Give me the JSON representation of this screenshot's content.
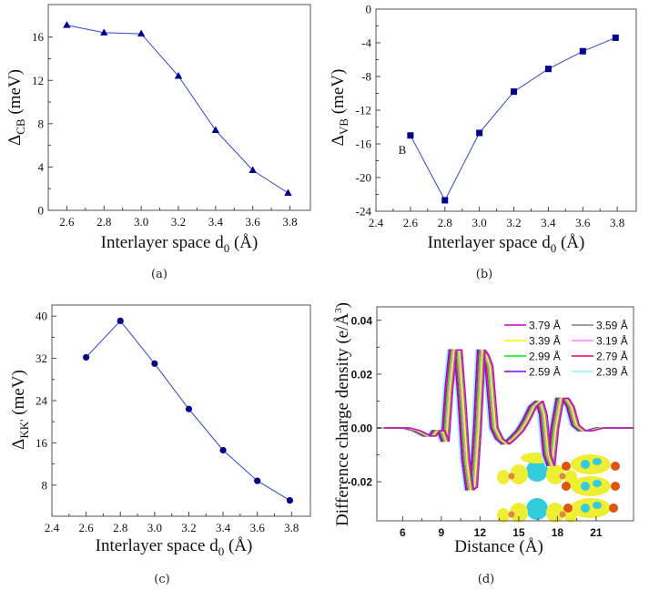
{
  "chart_data": [
    {
      "id": "a",
      "type": "line",
      "caption": "(a)",
      "xlabel": "Interlayer space d",
      "xlabel_sub": "0",
      "xlabel_unit": " (Å)",
      "ylabel_symbol": "Δ",
      "ylabel_sub": "CB",
      "ylabel_unit": " (meV)",
      "xlim": [
        2.5,
        3.91
      ],
      "ylim": [
        0,
        19
      ],
      "xticks": [
        2.6,
        2.8,
        3.0,
        3.2,
        3.4,
        3.6,
        3.8
      ],
      "xtick_labels": [
        "2.6",
        "2.8",
        "3.0",
        "3.2",
        "3.4",
        "3.6",
        "3.8"
      ],
      "yticks": [
        0,
        4,
        8,
        12,
        16
      ],
      "ytick_labels": [
        "0",
        "4",
        "8",
        "12",
        "16"
      ],
      "marker": "triangle",
      "color": "#00008b",
      "line_color": "#3344cc",
      "x": [
        2.6,
        2.8,
        3.0,
        3.2,
        3.4,
        3.6,
        3.79
      ],
      "values": [
        17.1,
        16.4,
        16.3,
        12.4,
        7.4,
        3.7,
        1.6
      ],
      "grid": false
    },
    {
      "id": "b",
      "type": "line",
      "caption": "(b)",
      "annotation": "B",
      "annotation_at": [
        2.53,
        -17.2
      ],
      "xlabel": "Interlayer space d",
      "xlabel_sub": "0",
      "xlabel_unit": " (Å)",
      "ylabel_symbol": "Δ",
      "ylabel_sub": "VB",
      "ylabel_unit": " (meV)",
      "xlim": [
        2.4,
        3.91
      ],
      "ylim": [
        -24,
        0
      ],
      "xticks": [
        2.4,
        2.6,
        2.8,
        3.0,
        3.2,
        3.4,
        3.6,
        3.8
      ],
      "xtick_labels": [
        "2.4",
        "2.6",
        "2.8",
        "3.0",
        "3.2",
        "3.4",
        "3.6",
        "3.8"
      ],
      "yticks": [
        -24,
        -20,
        -16,
        -12,
        -8,
        -4,
        0
      ],
      "ytick_labels": [
        "-24",
        "-20",
        "-16",
        "-12",
        "-8",
        "-4",
        "0"
      ],
      "marker": "square",
      "color": "#00008b",
      "line_color": "#3344cc",
      "x": [
        2.6,
        2.8,
        3.0,
        3.2,
        3.4,
        3.6,
        3.79
      ],
      "values": [
        -15.0,
        -22.7,
        -14.7,
        -9.8,
        -7.1,
        -5.0,
        -3.4
      ],
      "grid": false
    },
    {
      "id": "c",
      "type": "line",
      "caption": "(c)",
      "xlabel": "Interlayer space d",
      "xlabel_sub": "0",
      "xlabel_unit": " (Å)",
      "ylabel_symbol": "Δ",
      "ylabel_sub": "KK'",
      "ylabel_unit": " (meV)",
      "xlim": [
        2.4,
        3.91
      ],
      "ylim": [
        2.1,
        42.1
      ],
      "xticks": [
        2.4,
        2.6,
        2.8,
        3.0,
        3.2,
        3.4,
        3.6,
        3.8
      ],
      "xtick_labels": [
        "2.4",
        "2.6",
        "2.8",
        "3.0",
        "3.2",
        "3.4",
        "3.6",
        "3.8"
      ],
      "yticks": [
        8,
        16,
        24,
        32,
        40
      ],
      "ytick_labels": [
        "8",
        "16",
        "24",
        "32",
        "40"
      ],
      "marker": "circle",
      "color": "#00008b",
      "line_color": "#3344cc",
      "x": [
        2.6,
        2.8,
        3.0,
        3.2,
        3.4,
        3.6,
        3.79
      ],
      "values": [
        32.2,
        39.1,
        31.0,
        22.4,
        14.6,
        8.8,
        5.1
      ],
      "grid": false
    },
    {
      "id": "d",
      "type": "line",
      "caption": "(d)",
      "xlabel": "Distance (Å)",
      "ylabel": "Difference charge density (e/Å",
      "ylabel_sup": "3",
      "ylabel_close": ")",
      "xlim": [
        4.0,
        23.9
      ],
      "ylim": [
        -0.0345,
        0.045
      ],
      "xticks": [
        6,
        9,
        12,
        15,
        18,
        21
      ],
      "xtick_labels": [
        "6",
        "9",
        "12",
        "15",
        "18",
        "21"
      ],
      "yticks": [
        -0.02,
        0.0,
        0.02,
        0.04
      ],
      "ytick_labels": [
        "-0.02",
        "0.00",
        "0.02",
        "0.04"
      ],
      "legend_position": "top-right",
      "grid": false,
      "inset": "charge-density isosurface structures (yellow/cyan lobes with orange atoms)",
      "profile_x": [
        4.0,
        6.0,
        6.8,
        7.6,
        8.0,
        8.3,
        8.7,
        9.0,
        9.3,
        9.6,
        10.0,
        10.3,
        10.6,
        10.9,
        11.2,
        11.5,
        11.8,
        12.1,
        12.4,
        12.8,
        13.2,
        13.7,
        14.2,
        14.8,
        15.3,
        15.8,
        16.3,
        16.6,
        16.9,
        17.2,
        17.5,
        17.9,
        18.3,
        18.7,
        19.1,
        19.6,
        20.2,
        21.0,
        22.0,
        23.9
      ],
      "profile_y": [
        0.0,
        0.0,
        -0.001,
        -0.003,
        -0.003,
        -0.001,
        -0.001,
        -0.005,
        0.015,
        0.029,
        0.029,
        0.01,
        -0.012,
        -0.023,
        -0.022,
        0.0,
        0.029,
        0.027,
        0.023,
        0.0,
        -0.004,
        -0.006,
        -0.004,
        -0.001,
        0.003,
        0.008,
        0.01,
        0.005,
        -0.01,
        -0.014,
        0.0,
        0.011,
        0.011,
        0.008,
        0.001,
        -0.001,
        -0.001,
        0.0,
        0.0,
        0.0
      ],
      "series": [
        {
          "name": "3.79 Å",
          "color": "#cc00cc",
          "shift": 0.6
        },
        {
          "name": "3.59 Å",
          "color": "#808080",
          "shift": 0.5
        },
        {
          "name": "3.39 Å",
          "color": "#ffff00",
          "shift": 0.4
        },
        {
          "name": "3.19 Å",
          "color": "#ff80ff",
          "shift": 0.3
        },
        {
          "name": "2.99 Å",
          "color": "#00ee00",
          "shift": 0.2
        },
        {
          "name": "2.79 Å",
          "color": "#ee0066",
          "shift": 0.1
        },
        {
          "name": "2.59 Å",
          "color": "#8800ee",
          "shift": 0.0
        },
        {
          "name": "2.39 Å",
          "color": "#99eeff",
          "shift": -0.1
        }
      ]
    }
  ]
}
